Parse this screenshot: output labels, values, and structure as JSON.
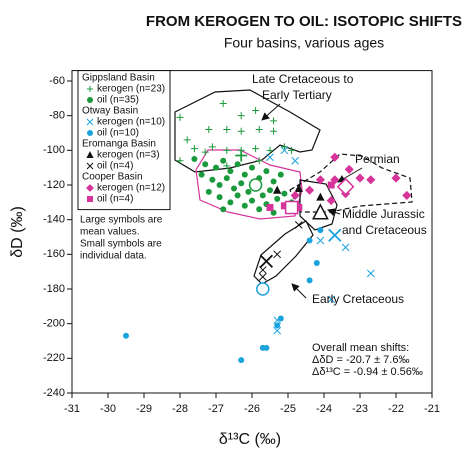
{
  "chart_data": {
    "type": "scatter",
    "title": "FROM KEROGEN TO OIL: ISOTOPIC SHIFTS",
    "subtitle": "Four basins, various ages",
    "x_label": "δ¹³C (‰)",
    "y_label": "δD (‰)",
    "xlim": [
      -31,
      -21
    ],
    "xticks": [
      -31,
      -30,
      -29,
      -28,
      -27,
      -26,
      -25,
      -24,
      -23,
      -22,
      -21
    ],
    "ylim": [
      -240,
      -54
    ],
    "yticks": [
      -240,
      -220,
      -200,
      -180,
      -160,
      -140,
      -120,
      -100,
      -80,
      -60
    ],
    "groups": [
      {
        "name": "Gippsland Basin",
        "color": "#1a9a3c",
        "series": [
          {
            "name": "kerogen (n=23)",
            "marker": "plus",
            "x": [
              -28.0,
              -26.8,
              -26.3,
              -27.2,
              -26.7,
              -26.3,
              -25.8,
              -25.4,
              -24.9,
              -27.8,
              -27.6,
              -28.0,
              -27.3,
              -27.1,
              -26.7,
              -26.3,
              -25.9,
              -25.5,
              -25.1,
              -25.8,
              -26.7,
              -25.4,
              -25.9
            ],
            "values": [
              -81,
              -73,
              -80,
              -88,
              -88,
              -89,
              -88,
              -89,
              -100,
              -94,
              -99,
              -106,
              -101,
              -98,
              -100,
              -100,
              -99,
              -100,
              -98,
              -106,
              -109,
              -83,
              -77
            ],
            "mean_x": -26.3,
            "mean_value": -103
          },
          {
            "name": "oil (n=35)",
            "marker": "dot",
            "x": [
              -27.6,
              -27.3,
              -27.0,
              -26.8,
              -26.6,
              -26.4,
              -26.2,
              -26.0,
              -25.8,
              -25.6,
              -25.4,
              -25.2,
              -27.4,
              -27.1,
              -26.9,
              -26.7,
              -26.5,
              -26.3,
              -26.1,
              -25.9,
              -25.7,
              -25.5,
              -25.3,
              -25.1,
              -24.9,
              -27.2,
              -26.9,
              -26.6,
              -26.4,
              -26.2,
              -26.0,
              -25.8,
              -25.6,
              -25.4,
              -26.8
            ],
            "values": [
              -105,
              -108,
              -110,
              -106,
              -112,
              -108,
              -114,
              -110,
              -116,
              -112,
              -118,
              -114,
              -114,
              -117,
              -120,
              -116,
              -122,
              -119,
              -124,
              -120,
              -126,
              -123,
              -128,
              -125,
              -130,
              -124,
              -127,
              -130,
              -126,
              -132,
              -129,
              -134,
              -131,
              -136,
              -134
            ],
            "mean_x": -25.9,
            "mean_value": -120
          }
        ]
      },
      {
        "name": "Otway Basin",
        "color": "#1ba3dd",
        "series": [
          {
            "name": "kerogen (n=10)",
            "marker": "cross",
            "x": [
              -25.5,
              -24.8,
              -25.1,
              -23.4,
              -22.7,
              -23.8,
              -25.3,
              -25.3,
              -24.1,
              -24.1
            ],
            "values": [
              -104,
              -106,
              -100,
              -156,
              -171,
              -186,
              -198,
              -204,
              -152,
              -137
            ],
            "mean_x": -23.7,
            "mean_value": -149
          },
          {
            "name": "oil (n=10)",
            "marker": "dot",
            "x": [
              -29.5,
              -26.3,
              -25.7,
              -25.6,
              -25.3,
              -25.2,
              -24.4,
              -24.2,
              -24.4,
              -24.1
            ],
            "values": [
              -207,
              -221,
              -214,
              -214,
              -201,
              -197,
              -175,
              -165,
              -152,
              -146
            ],
            "mean_x": -25.7,
            "mean_value": -180
          }
        ]
      },
      {
        "name": "Eromanga Basin",
        "color": "#111111",
        "series": [
          {
            "name": "kerogen (n=3)",
            "marker": "triangle",
            "x": [
              -24.1,
              -25.3,
              -24.7
            ],
            "values": [
              -127,
              -123,
              -122
            ],
            "mean_x": -24.1,
            "mean_value": -136
          },
          {
            "name": "oil (n=4)",
            "marker": "cross",
            "x": [
              -25.7,
              -25.7,
              -25.3,
              -24.7
            ],
            "values": [
              -169,
              -173,
              -160,
              -143
            ],
            "mean_x": -25.6,
            "mean_value": -164
          }
        ]
      },
      {
        "name": "Cooper Basin",
        "color": "#d6339b",
        "series": [
          {
            "name": "kerogen (n=12)",
            "marker": "diamond",
            "x": [
              -23.7,
              -23.3,
              -23.0,
              -22.7,
              -22.0,
              -23.7,
              -23.4,
              -24.1,
              -23.8,
              -24.4,
              -24.8,
              -21.7
            ],
            "values": [
              -104,
              -111,
              -116,
              -117,
              -116,
              -117,
              -125,
              -117,
              -129,
              -123,
              -126,
              -126
            ],
            "mean_x": -23.4,
            "mean_value": -121
          },
          {
            "name": "oil (n=4)",
            "marker": "square",
            "x": [
              -25.5,
              -25.1,
              -24.7,
              -23.8
            ],
            "values": [
              -133,
              -132,
              -133,
              -120
            ],
            "mean_x": -24.9,
            "mean_value": -133
          }
        ]
      }
    ],
    "note": [
      "Large symbols are",
      "mean values.",
      "Small symbols are",
      "individual data."
    ],
    "annotations": [
      "Late Cretaceous to",
      "Early Tertiary",
      "Permian",
      "Middle Jurassic",
      "and Cretaceous",
      "Early Cretaceous"
    ],
    "stats": [
      "Overall mean shifts:",
      "ΔδD = -20.7 ± 7.6‰",
      "Δδ¹³C = -0.94 ± 0.56‰"
    ]
  }
}
